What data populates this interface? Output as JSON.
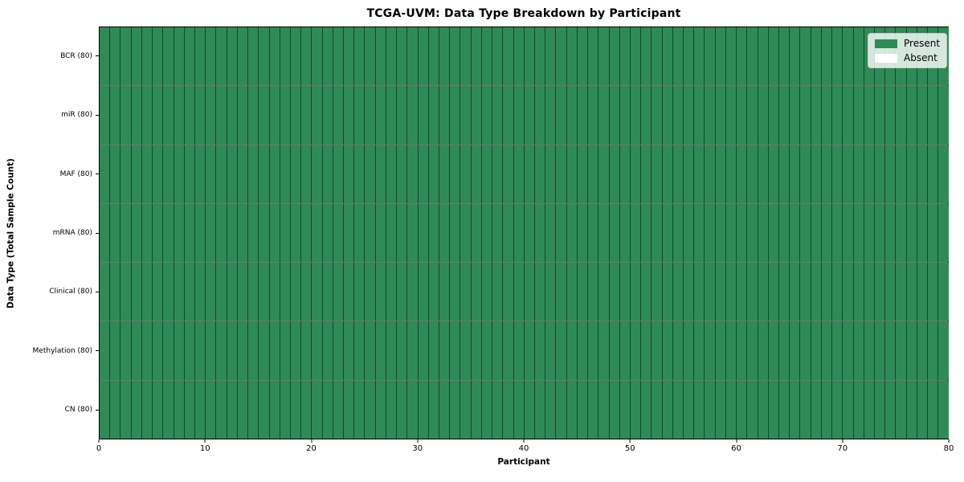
{
  "chart_data": {
    "type": "heatmap",
    "title": "TCGA-UVM: Data Type Breakdown by Participant",
    "xlabel": "Participant",
    "ylabel": "Data Type (Total Sample Count)",
    "xlim": [
      0,
      80
    ],
    "x_ticks": [
      0,
      10,
      20,
      30,
      40,
      50,
      60,
      70,
      80
    ],
    "n_participants": 80,
    "rows": [
      {
        "label": "BCR (80)",
        "data_type": "BCR",
        "total_samples": 80,
        "present_participants": 80,
        "absent_participants": 0
      },
      {
        "label": "miR (80)",
        "data_type": "miR",
        "total_samples": 80,
        "present_participants": 80,
        "absent_participants": 0
      },
      {
        "label": "MAF (80)",
        "data_type": "MAF",
        "total_samples": 80,
        "present_participants": 80,
        "absent_participants": 0
      },
      {
        "label": "mRNA (80)",
        "data_type": "mRNA",
        "total_samples": 80,
        "present_participants": 80,
        "absent_participants": 0
      },
      {
        "label": "Clinical (80)",
        "data_type": "Clinical",
        "total_samples": 80,
        "present_participants": 80,
        "absent_participants": 0
      },
      {
        "label": "Methylation (80)",
        "data_type": "Methylation",
        "total_samples": 80,
        "present_participants": 80,
        "absent_participants": 0
      },
      {
        "label": "CN (80)",
        "data_type": "CN",
        "total_samples": 80,
        "present_participants": 80,
        "absent_participants": 0
      }
    ],
    "grid_note": "all 7 data types present for all 80 participants",
    "cell_colors": {
      "present": "#2e8b57",
      "absent": "#ffffff"
    },
    "legend": {
      "position": "upper right",
      "entries": [
        {
          "label": "Present",
          "color": "#2e8b57"
        },
        {
          "label": "Absent",
          "color": "#ffffff"
        }
      ]
    }
  }
}
